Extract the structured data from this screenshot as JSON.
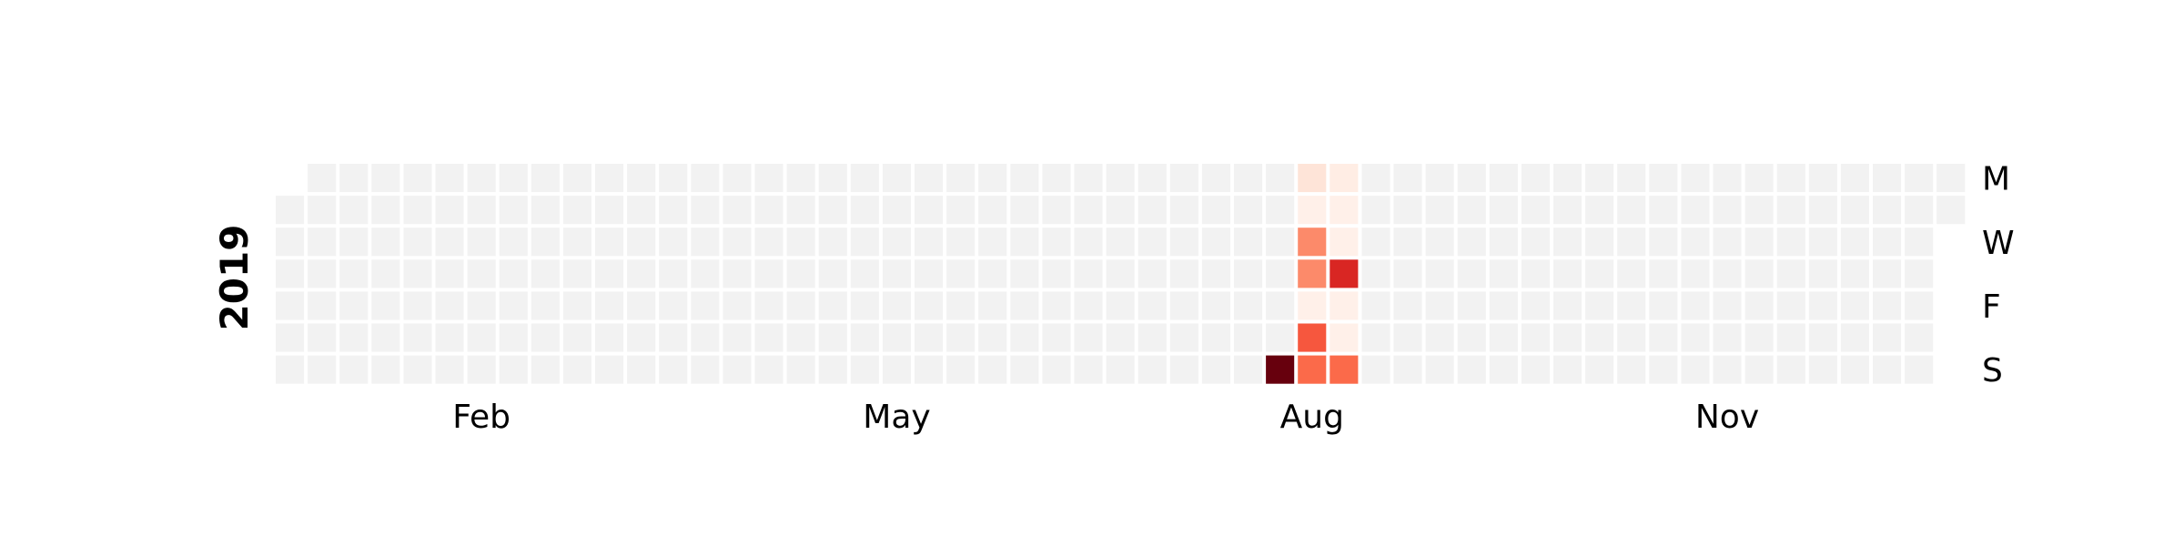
{
  "chart_data": {
    "type": "heatmap",
    "title": "",
    "year": "2019",
    "year_label": "2019",
    "start_weekday_of_jan1": "Tuesday",
    "month_labels": [
      {
        "label": "Feb",
        "month": 2
      },
      {
        "label": "May",
        "month": 5
      },
      {
        "label": "Aug",
        "month": 8
      },
      {
        "label": "Nov",
        "month": 11
      }
    ],
    "weekday_labels": [
      {
        "label": "M",
        "weekday": 0
      },
      {
        "label": "W",
        "weekday": 2
      },
      {
        "label": "F",
        "weekday": 4
      },
      {
        "label": "S",
        "weekday": 6
      }
    ],
    "colormap": "Reds",
    "empty_color": "#f2f2f2",
    "color_stops": [
      "#fff5f0",
      "#fee0d2",
      "#fcbba1",
      "#fc9272",
      "#fb6a4a",
      "#ef3b2c",
      "#cb181d",
      "#a50f15",
      "#67000d"
    ],
    "value_range": [
      0,
      10
    ],
    "nonzero_values": [
      {
        "date": "2019-08-11",
        "value": 10
      },
      {
        "date": "2019-08-12",
        "value": 1
      },
      {
        "date": "2019-08-13",
        "value": 0.3
      },
      {
        "date": "2019-08-14",
        "value": 4
      },
      {
        "date": "2019-08-15",
        "value": 4
      },
      {
        "date": "2019-08-16",
        "value": 0.3
      },
      {
        "date": "2019-08-17",
        "value": 5.5
      },
      {
        "date": "2019-08-18",
        "value": 5
      },
      {
        "date": "2019-08-19",
        "value": 0.5
      },
      {
        "date": "2019-08-20",
        "value": 0.3
      },
      {
        "date": "2019-08-21",
        "value": 0.3
      },
      {
        "date": "2019-08-22",
        "value": 7
      },
      {
        "date": "2019-08-23",
        "value": 0.3
      },
      {
        "date": "2019-08-24",
        "value": 0.3
      },
      {
        "date": "2019-08-25",
        "value": 5
      }
    ],
    "grid": false,
    "legend": "none"
  }
}
